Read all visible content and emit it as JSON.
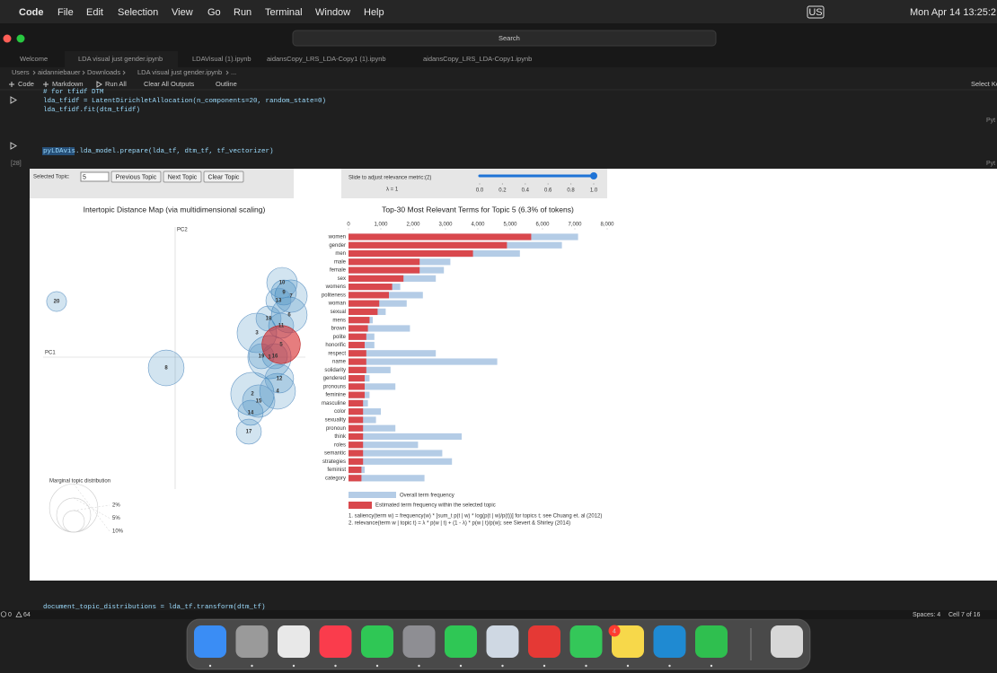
{
  "menu_bar": {
    "app": "Code",
    "items": [
      "File",
      "Edit",
      "Selection",
      "View",
      "Go",
      "Run",
      "Terminal",
      "Window",
      "Help"
    ],
    "input_source": "US",
    "clock": "Mon Apr 14  13:25:2"
  },
  "window": {
    "search": "Search"
  },
  "tabs": [
    "Welcome",
    "LDA visual just gender.ipynb",
    "LDAVisual (1).ipynb",
    "aidansCopy_LRS_LDA-Copy1 (1).ipynb",
    "aidansCopy_LRS_LDA-Copy1.ipynb"
  ],
  "breadcrumb": [
    "Users",
    "aidanniebauer",
    "Downloads",
    "LDA visual just gender.ipynb",
    "..."
  ],
  "toolbar": [
    "Code",
    "Markdown",
    "Run All",
    "Clear All Outputs",
    "Outline",
    "Select Ke"
  ],
  "cells": [
    {
      "lines": [
        "# for tfidf DTM",
        "lda_tfidf = LatentDirichletAllocation(n_components=20, random_state=0)",
        "lda_tfidf.fit(dtm_tfidf)"
      ],
      "kernel": "Pyt"
    },
    {
      "count": "[28]",
      "lines": [
        "pyLDAvis.lda_model.prepare(lda_tf, dtm_tf, tf_vectorizer)"
      ],
      "kernel": "Pyt"
    },
    {
      "lines": [
        "document_topic_distributions = lda_tf.transform(dtm_tf)"
      ]
    }
  ],
  "ldavis": {
    "selected_topic_label": "Selected Topic:",
    "selected_topic": 5,
    "buttons": [
      "Previous Topic",
      "Next Topic",
      "Clear Topic"
    ],
    "slider_label": "Slide to adjust relevance metric:(2)",
    "lambda_label": "λ = 1",
    "lambda": 1,
    "slider_ticks": [
      {
        "value": 0,
        "label": "0.0"
      },
      {
        "value": 0.2,
        "label": "0.2"
      },
      {
        "value": 0.4,
        "label": "0.4"
      },
      {
        "value": 0.6,
        "label": "0.6"
      },
      {
        "value": 0.8,
        "label": "0.8"
      },
      {
        "value": 1,
        "label": "1.0"
      }
    ],
    "map": {
      "title": "Intertopic Distance Map (via multidimensional scaling)",
      "x_label": "PC1",
      "y_label": "PC2",
      "topics": [
        {
          "topic": 1,
          "pc1": 1.05,
          "pc2": 0.0,
          "share": 8.0
        },
        {
          "topic": 2,
          "pc1": 0.86,
          "pc2": -0.41,
          "share": 8.0
        },
        {
          "topic": 3,
          "pc1": 0.91,
          "pc2": 0.27,
          "share": 6.7
        },
        {
          "topic": 4,
          "pc1": 1.14,
          "pc2": -0.38,
          "share": 5.5
        },
        {
          "topic": 5,
          "pc1": 1.18,
          "pc2": 0.14,
          "share": 6.3
        },
        {
          "topic": 6,
          "pc1": 1.27,
          "pc2": 0.47,
          "share": 5.5
        },
        {
          "topic": 7,
          "pc1": 1.29,
          "pc2": 0.68,
          "share": 4.5
        },
        {
          "topic": 8,
          "pc1": -0.1,
          "pc2": -0.12,
          "share": 5.5
        },
        {
          "topic": 9,
          "pc1": 1.21,
          "pc2": 0.72,
          "share": 2.7
        },
        {
          "topic": 10,
          "pc1": 1.19,
          "pc2": 0.83,
          "share": 4.0
        },
        {
          "topic": 11,
          "pc1": 1.18,
          "pc2": 0.35,
          "share": 2.7
        },
        {
          "topic": 12,
          "pc1": 1.16,
          "pc2": -0.24,
          "share": 3.5
        },
        {
          "topic": 13,
          "pc1": 1.15,
          "pc2": 0.63,
          "share": 2.7
        },
        {
          "topic": 14,
          "pc1": 0.84,
          "pc2": -0.62,
          "share": 2.7
        },
        {
          "topic": 15,
          "pc1": 0.93,
          "pc2": -0.49,
          "share": 4.5
        },
        {
          "topic": 16,
          "pc1": 1.11,
          "pc2": 0.01,
          "share": 2.7
        },
        {
          "topic": 17,
          "pc1": 0.82,
          "pc2": -0.83,
          "share": 2.7
        },
        {
          "topic": 18,
          "pc1": 1.04,
          "pc2": 0.43,
          "share": 2.7
        },
        {
          "topic": 19,
          "pc1": 0.96,
          "pc2": 0.01,
          "share": 2.7
        },
        {
          "topic": 20,
          "pc1": -1.32,
          "pc2": 0.62,
          "share": 1.7
        }
      ],
      "legend_title": "Marginal topic distribution",
      "legend": [
        {
          "value": 2,
          "label": "2%"
        },
        {
          "value": 5,
          "label": "5%"
        },
        {
          "value": 10,
          "label": "10%"
        }
      ]
    },
    "bars": {
      "title": "Top-30 Most Relevant Terms for Topic 5 (6.3% of tokens)",
      "xlim": [
        0,
        8000
      ],
      "xticks": [
        0,
        {
          "value": 1000,
          "label": "1,000"
        },
        {
          "value": 2000,
          "label": "2,000"
        },
        {
          "value": 3000,
          "label": "3,000"
        },
        {
          "value": 4000,
          "label": "4,000"
        },
        {
          "value": 5000,
          "label": "5,000"
        },
        {
          "value": 6000,
          "label": "6,000"
        },
        {
          "value": 7000,
          "label": "7,000"
        },
        {
          "value": 8000,
          "label": "8,000"
        }
      ],
      "terms": [
        "women",
        "gender",
        "men",
        "male",
        "female",
        "sex",
        "womens",
        "politeness",
        "woman",
        "sexual",
        "mens",
        "brown",
        "polite",
        "honorific",
        "respect",
        "name",
        "solidarity",
        "gendered",
        "pronouns",
        "feminine",
        "masculine",
        "color",
        "sexuality",
        "pronoun",
        "think",
        "roles",
        "semantic",
        "strategies",
        "feminist",
        "category"
      ],
      "overall": [
        7100,
        6600,
        5300,
        3150,
        2950,
        2700,
        1600,
        2300,
        1800,
        1150,
        750,
        1900,
        800,
        800,
        2700,
        4600,
        1300,
        650,
        1450,
        650,
        600,
        1000,
        850,
        1450,
        3500,
        2150,
        2900,
        3200,
        500,
        2350
      ],
      "estimated": [
        5650,
        4900,
        3850,
        2200,
        2200,
        1700,
        1350,
        1250,
        950,
        900,
        650,
        600,
        550,
        500,
        550,
        550,
        550,
        500,
        500,
        500,
        450,
        450,
        450,
        450,
        450,
        450,
        450,
        450,
        400,
        400
      ],
      "overall_color": "#b4cce6",
      "estimated_color": "#d9484d",
      "legend": [
        "Overall term frequency",
        "Estimated term frequency within the selected topic"
      ],
      "notes": [
        "1. saliency(term w) = frequency(w) * [sum_t p(t | w) * log(p(t | w)/p(t))] for topics t; see Chuang et. al (2012)",
        "2. relevance(term w | topic t) = λ * p(w | t) + (1 - λ) * p(w | t)/p(w); see Sievert & Shirley (2014)"
      ]
    }
  },
  "status_bar": {
    "errors": 0,
    "warnings": 64,
    "spaces": "Spaces: 4",
    "cell": "Cell 7 of 16"
  },
  "dock": {
    "badge": 4
  }
}
